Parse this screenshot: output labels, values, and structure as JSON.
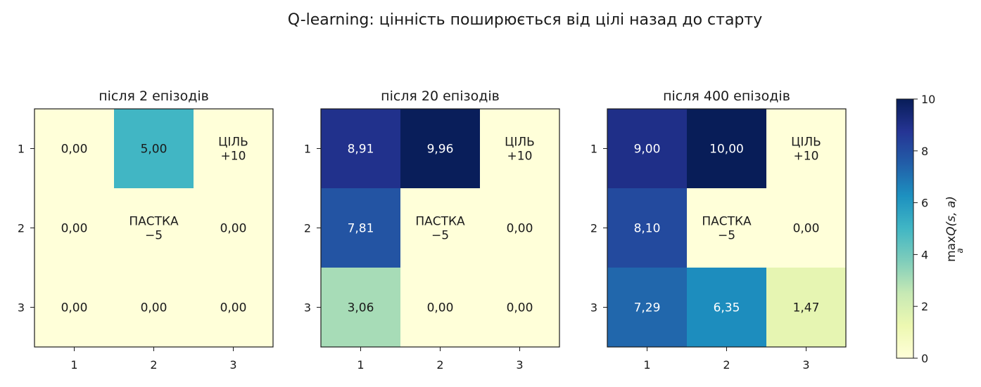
{
  "chart_data": {
    "type": "heatmap",
    "title": "Q-learning: цінність поширюється від цілі назад до старту",
    "colorbar": {
      "label_main": "max",
      "label_q": "Q(s, a)",
      "label_sub": "a",
      "range": [
        0,
        10
      ],
      "ticks": [
        0,
        2,
        4,
        6,
        8,
        10
      ],
      "colormap": "YlGnBu",
      "stops": [
        "#ffffd9",
        "#edf8b1",
        "#c7e9b4",
        "#7fcdbb",
        "#41b6c4",
        "#1d91c0",
        "#225ea8",
        "#253494",
        "#081d58"
      ]
    },
    "row_ticks": [
      "1",
      "2",
      "3"
    ],
    "col_ticks": [
      "1",
      "2",
      "3"
    ],
    "panels": [
      {
        "title": "після 2 епізодів",
        "values": [
          [
            0.0,
            5.0,
            null
          ],
          [
            0.0,
            null,
            0.0
          ],
          [
            0.0,
            0.0,
            0.0
          ]
        ],
        "labels": [
          [
            "0,00",
            "5,00",
            "ЦІЛЬ\n+10"
          ],
          [
            "0,00",
            "ПАСТКА\n−5",
            "0,00"
          ],
          [
            "0,00",
            "0,00",
            "0,00"
          ]
        ]
      },
      {
        "title": "після 20 епізодів",
        "values": [
          [
            8.91,
            9.96,
            null
          ],
          [
            7.81,
            null,
            0.0
          ],
          [
            3.06,
            0.0,
            0.0
          ]
        ],
        "labels": [
          [
            "8,91",
            "9,96",
            "ЦІЛЬ\n+10"
          ],
          [
            "7,81",
            "ПАСТКА\n−5",
            "0,00"
          ],
          [
            "3,06",
            "0,00",
            "0,00"
          ]
        ]
      },
      {
        "title": "після 400 епізодів",
        "values": [
          [
            9.0,
            10.0,
            null
          ],
          [
            8.1,
            null,
            0.0
          ],
          [
            7.29,
            6.35,
            1.47
          ]
        ],
        "labels": [
          [
            "9,00",
            "10,00",
            "ЦІЛЬ\n+10"
          ],
          [
            "8,10",
            "ПАСТКА\n−5",
            "0,00"
          ],
          [
            "7,29",
            "6,35",
            "1,47"
          ]
        ]
      }
    ]
  }
}
